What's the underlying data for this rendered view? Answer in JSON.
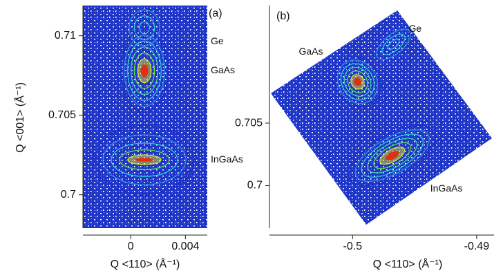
{
  "chart_data": [
    {
      "type": "contour",
      "title": "(a)",
      "x_label": "Q <110> (Å⁻¹)",
      "y_label": "Q <001> (Å⁻¹)",
      "xlim": [
        -0.0035,
        0.0056
      ],
      "ylim": [
        0.6979,
        0.7119
      ],
      "xticks": [
        0,
        0.004
      ],
      "yticks": [
        0.7,
        0.705,
        0.71
      ],
      "colors": [
        "#1a2fd0",
        "#2a8ee0",
        "#28c8d8",
        "#30d8a0",
        "#60e040",
        "#d8e020",
        "#e03010"
      ],
      "peaks": [
        {
          "label": "Ge",
          "x": 0.001,
          "y": 0.7105
        },
        {
          "label": "GaAs",
          "x": 0.001,
          "y": 0.7078
        },
        {
          "label": "InGaAs",
          "x": 0.001,
          "y": 0.7022
        }
      ]
    },
    {
      "type": "contour",
      "title": "(b)",
      "x_label": "Q <110> (Å⁻¹)",
      "xlim": [
        -0.5067,
        -0.4886
      ],
      "ylim": [
        0.6966,
        0.7144
      ],
      "xticks": [
        -0.5,
        -0.49
      ],
      "yticks": [
        0.7,
        0.705
      ],
      "colors": [
        "#1a2fd0",
        "#2a8ee0",
        "#28c8d8",
        "#30d8a0",
        "#60e040",
        "#d8e020",
        "#e03010"
      ],
      "peaks": [
        {
          "label": "Ge",
          "x": -0.4967,
          "y": 0.7113
        },
        {
          "label": "GaAs",
          "x": -0.4996,
          "y": 0.7083
        },
        {
          "label": "InGaAs",
          "x": -0.4968,
          "y": 0.7024
        }
      ]
    }
  ]
}
